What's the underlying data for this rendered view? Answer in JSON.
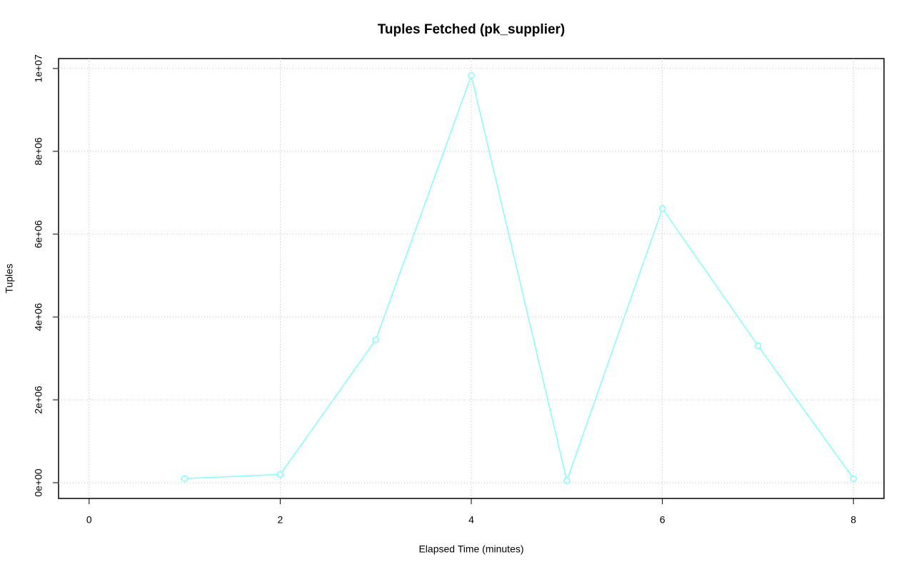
{
  "chart_data": {
    "type": "line",
    "title": "Tuples Fetched (pk_supplier)",
    "x_label": "Elapsed Time (minutes)",
    "y_label": "Tuples",
    "x": [
      1,
      2,
      3,
      4,
      5,
      6,
      7,
      8
    ],
    "series": [
      {
        "color": "#80ffff",
        "values": [
          100000,
          200000,
          3450000,
          9830000,
          50000,
          6620000,
          3310000,
          100000
        ]
      }
    ],
    "xlim": [
      -0.32,
      8.32
    ],
    "xticks": [
      0,
      2,
      4,
      6,
      8
    ],
    "ylim": [
      -380000,
      10240000
    ],
    "yticks": [
      {
        "value": 0,
        "label": "0e+00"
      },
      {
        "value": 2000000,
        "label": "2e+06"
      },
      {
        "value": 4000000,
        "label": "4e+06"
      },
      {
        "value": 6000000,
        "label": "6e+06"
      },
      {
        "value": 8000000,
        "label": "8e+06"
      },
      {
        "value": 10000000,
        "label": "1e+07"
      }
    ],
    "grid": true
  }
}
